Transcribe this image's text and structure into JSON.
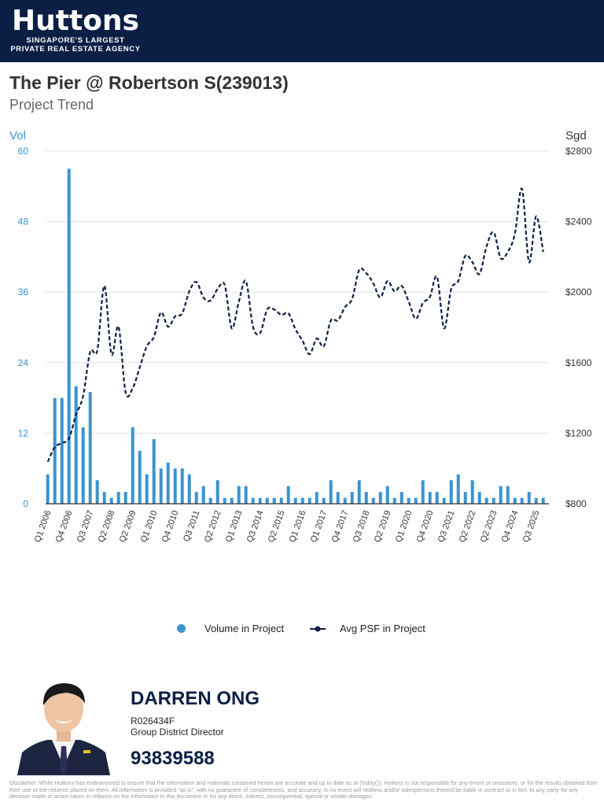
{
  "brand": {
    "logo_text": "Huttons",
    "tagline_line1": "SINGAPORE'S LARGEST",
    "tagline_line2": "PRIVATE REAL ESTATE AGENCY",
    "watermark": "Huttons",
    "colors": {
      "header_bg": "#0b1f45",
      "bar": "#3a93d0",
      "line": "#0b1f45"
    }
  },
  "page": {
    "title": "The Pier @ Robertson S(239013)",
    "subtitle": "Project Trend"
  },
  "chart_data": {
    "type": "bar+line",
    "left_axis": {
      "label": "Vol",
      "range": [
        0,
        60
      ],
      "ticks": [
        "60",
        "48",
        "36",
        "24",
        "12",
        "0"
      ]
    },
    "right_axis": {
      "label": "Sgd",
      "range": [
        800,
        2800
      ],
      "ticks": [
        "$2800",
        "$2400",
        "$2000",
        "$1600",
        "$1200",
        "$800"
      ]
    },
    "x_tick_labels": [
      "Q1 2006",
      "Q4 2006",
      "Q3 2007",
      "Q2 2008",
      "Q2 2009",
      "Q1 2010",
      "Q4 2010",
      "Q3 2011",
      "Q2 2012",
      "Q1 2013",
      "Q3 2014",
      "Q2 2015",
      "Q1 2016",
      "Q1 2017",
      "Q4 2017",
      "Q3 2018",
      "Q2 2019",
      "Q1 2020",
      "Q4 2020",
      "Q3 2021",
      "Q2 2022",
      "Q2 2023",
      "Q4 2024",
      "Q3 2025"
    ],
    "x_tick_every": 3,
    "grid": true,
    "legend_position": "bottom",
    "series": [
      {
        "name": "Volume in Project",
        "type": "bar",
        "axis": "left",
        "values": [
          5,
          18,
          18,
          57,
          20,
          13,
          19,
          4,
          2,
          1,
          2,
          2,
          13,
          9,
          5,
          11,
          6,
          7,
          6,
          6,
          5,
          2,
          3,
          1,
          4,
          1,
          1,
          3,
          3,
          1,
          1,
          1,
          1,
          1,
          3,
          1,
          1,
          1,
          2,
          1,
          4,
          2,
          1,
          2,
          4,
          2,
          1,
          2,
          3,
          1,
          2,
          1,
          1,
          4,
          2,
          2,
          1,
          4,
          5,
          2,
          4,
          2,
          1,
          1,
          3,
          3,
          1,
          1,
          2,
          1,
          1
        ]
      },
      {
        "name": "Avg PSF in Project",
        "type": "line",
        "style": "dashed",
        "axis": "right",
        "values": [
          1038,
          1121,
          1144,
          1171,
          1305,
          1411,
          1662,
          1670,
          2036,
          1648,
          1804,
          1433,
          1455,
          1573,
          1693,
          1746,
          1885,
          1804,
          1863,
          1880,
          2005,
          2058,
          1970,
          1952,
          2018,
          2041,
          1795,
          1946,
          2063,
          1804,
          1768,
          1902,
          1902,
          1871,
          1880,
          1790,
          1724,
          1648,
          1737,
          1693,
          1840,
          1840,
          1916,
          1961,
          2126,
          2108,
          2050,
          1970,
          2063,
          2005,
          2036,
          1946,
          1849,
          1938,
          1974,
          2086,
          1795,
          2018,
          2063,
          2206,
          2170,
          2103,
          2260,
          2340,
          2193,
          2229,
          2331,
          2586,
          2170,
          2430,
          2229
        ]
      }
    ]
  },
  "agent": {
    "name": "DARREN ONG",
    "registration": "R026434F",
    "role": "Group District Director",
    "phone": "93839588"
  },
  "disclaimer": "Disclaimer: While Huttons has endeavoured to ensure that the information and materials contained herein are accurate and up to date as at (today()), Huttons is not responsible for any errors or omissions, or for the results obtained from their use or the reliance placed on them. All information is provided \"as is\", with no guarantee of completeness, and accuracy. In no event will Huttons and/or salespersons thereof be liable in contract or in tort, to any party for any decision made or action taken in reliance on the information in this document or for any direct, indirect, consequential, special or similar damages."
}
